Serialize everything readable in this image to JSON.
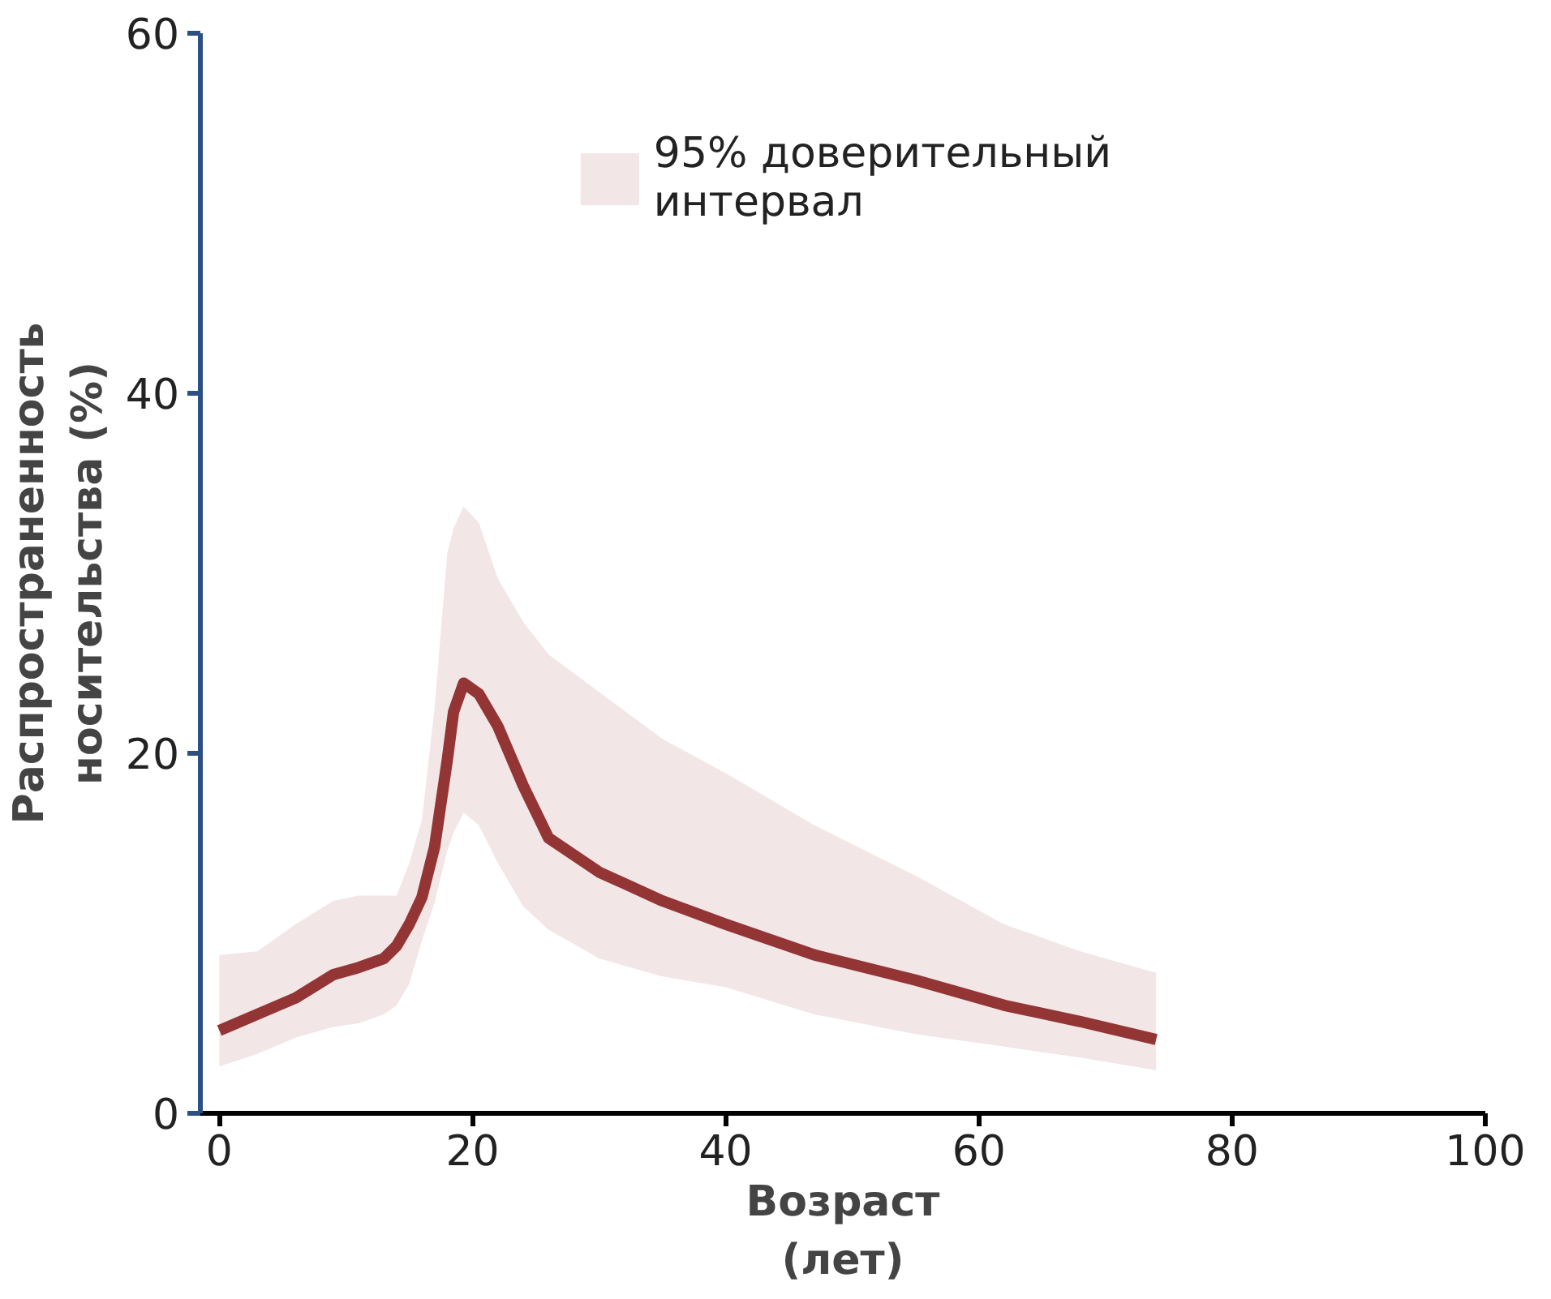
{
  "chart_data": {
    "type": "line",
    "xlabel": "Возраст\n(лет)",
    "ylabel": "Распространенность\nносительства (%)",
    "xlim": [
      -1.5,
      100
    ],
    "xticks": [
      0,
      20,
      40,
      60,
      80,
      100
    ],
    "ylim": [
      0,
      60
    ],
    "yticks": [
      0,
      20,
      40,
      60
    ],
    "grid": false,
    "legend": "top",
    "series": [
      {
        "name": "95% доверительный интервал",
        "color": "#943535",
        "x": [
          0,
          3,
          6,
          9,
          11,
          13,
          14,
          15,
          16,
          17,
          18,
          18.5,
          19.3,
          20.5,
          22,
          24,
          26,
          30,
          35,
          40,
          47,
          55,
          62,
          68,
          74
        ],
        "values": [
          4.6,
          5.5,
          6.4,
          7.7,
          8.1,
          8.6,
          9.3,
          10.5,
          12,
          14.8,
          19.6,
          22.3,
          23.9,
          23.3,
          21.5,
          18.2,
          15.3,
          13.4,
          11.8,
          10.5,
          8.8,
          7.4,
          6.0,
          5.1,
          4.1
        ],
        "lower": [
          2.6,
          3.3,
          4.2,
          4.8,
          5.0,
          5.5,
          6.0,
          7.2,
          9.6,
          11.7,
          14.6,
          15.6,
          16.7,
          16.0,
          13.9,
          11.5,
          10.2,
          8.6,
          7.6,
          7.0,
          5.5,
          4.4,
          3.7,
          3.1,
          2.4
        ],
        "upper": [
          8.8,
          9.0,
          10.5,
          11.8,
          12.1,
          12.1,
          12.1,
          13.9,
          16.3,
          22.5,
          31.1,
          32.5,
          33.7,
          32.8,
          29.7,
          27.3,
          25.5,
          23.4,
          20.8,
          18.9,
          16.0,
          13.2,
          10.5,
          9.0,
          7.8
        ]
      }
    ]
  }
}
